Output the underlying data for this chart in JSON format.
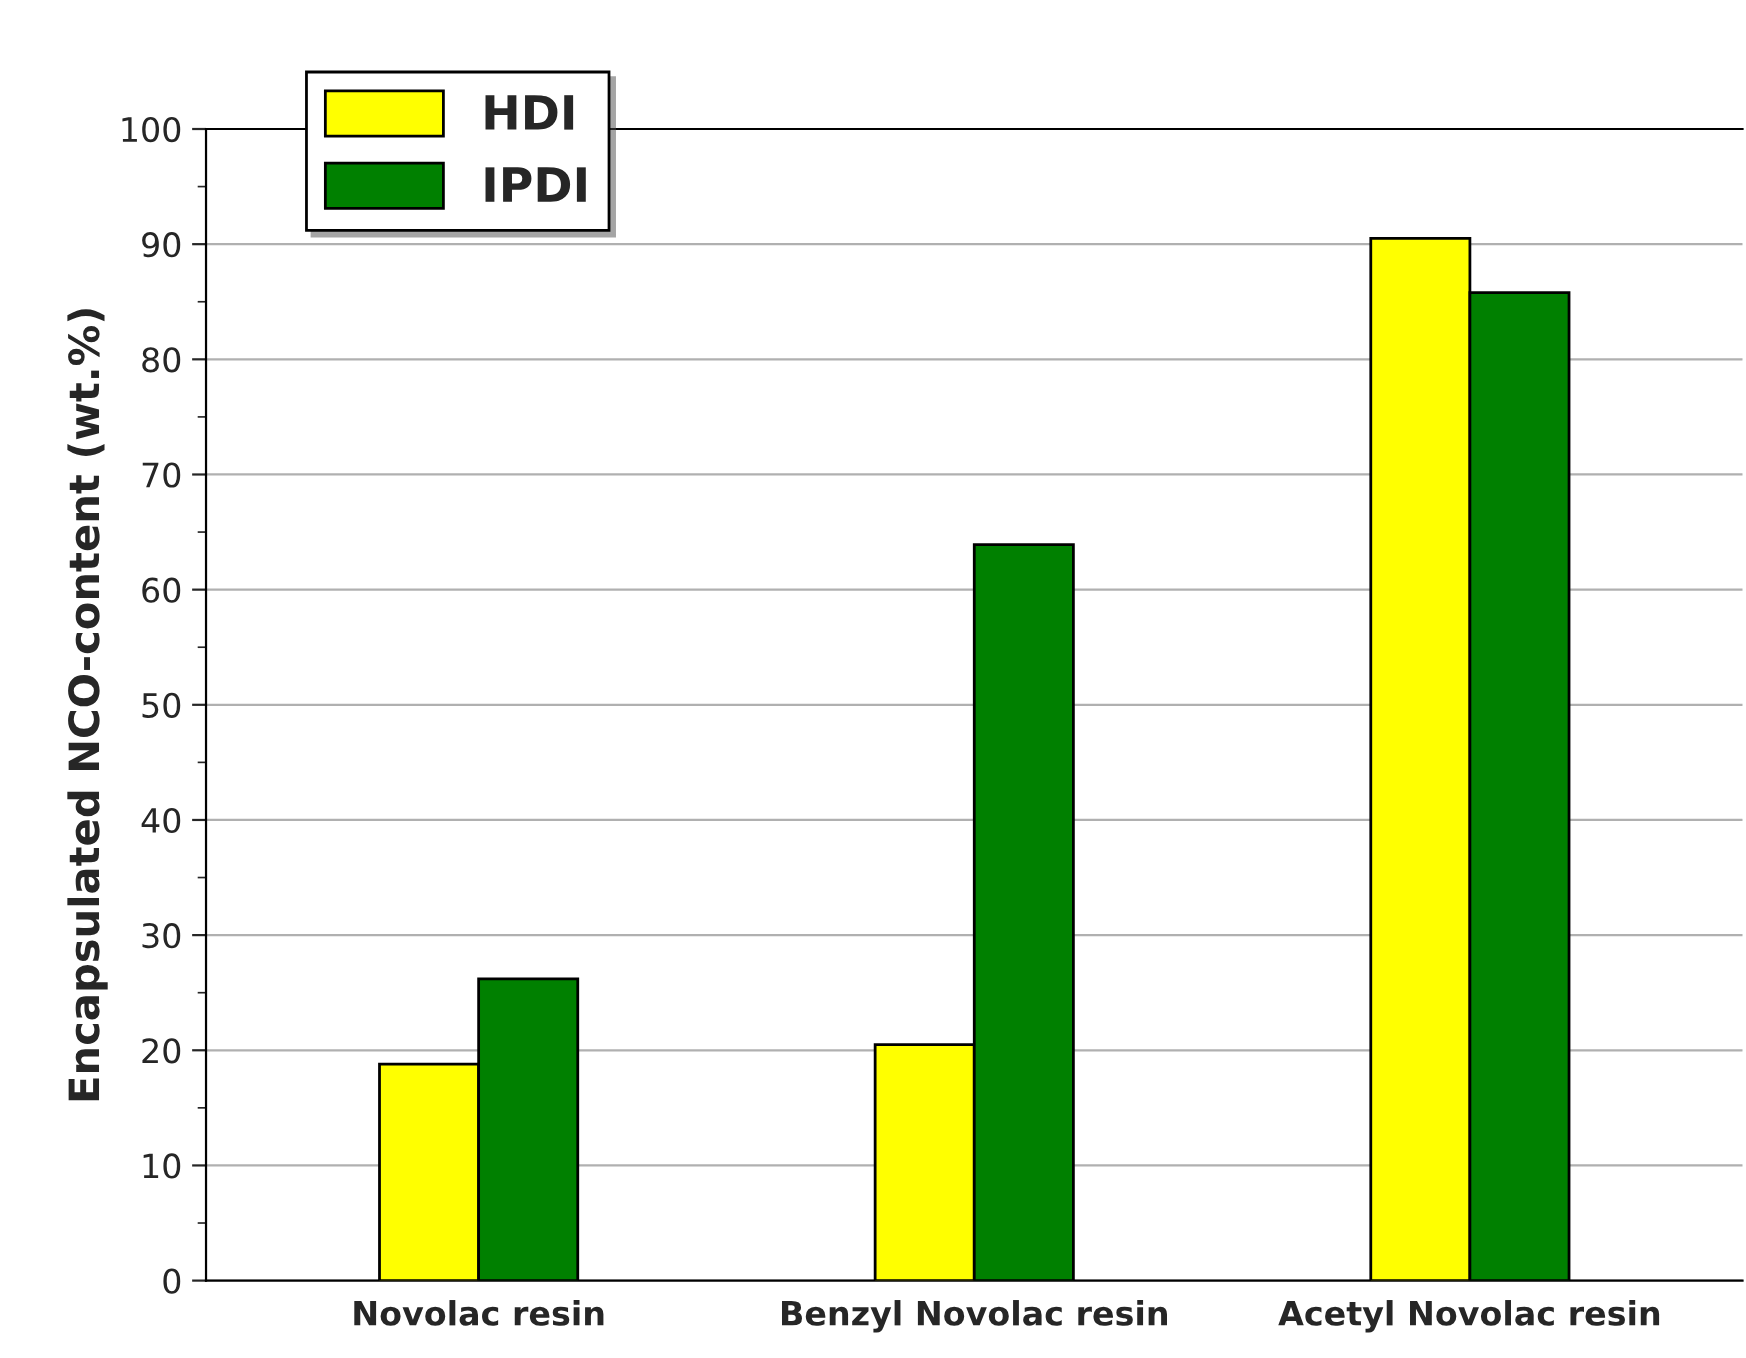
{
  "chart_data": {
    "type": "bar",
    "ylabel": "Encapsulated NCO-content (wt.%)",
    "categories": [
      "Novolac resin",
      "Benzyl Novolac resin",
      "Acetyl Novolac resin"
    ],
    "series": [
      {
        "name": "HDI",
        "color": "#ffff00",
        "values": [
          18.8,
          20.5,
          90.5
        ]
      },
      {
        "name": "IPDI",
        "color": "#008000",
        "values": [
          26.2,
          63.9,
          85.8
        ]
      }
    ],
    "ylim": [
      0,
      100
    ],
    "yticks": [
      0,
      10,
      20,
      30,
      40,
      50,
      60,
      70,
      80,
      90,
      100
    ],
    "grid": "y",
    "legend": "top left"
  }
}
